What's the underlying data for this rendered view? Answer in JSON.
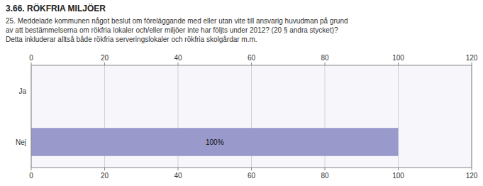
{
  "chart_data": {
    "type": "bar",
    "orientation": "horizontal",
    "title": "3.66. RÖKFRIA MILJÖER",
    "subtitle": "25. Meddelade kommunen något beslut om föreläggande med eller utan vite till ansvarig huvudman på grund\nav att bestämmelserna om rökfria lokaler och/eller miljöer inte har följts under 2012? (20 § andra stycket)?\nDetta inkluderar alltså både rökfria serveringslokaler och rökfria skolgårdar m.m.",
    "categories": [
      "Nej",
      "Ja"
    ],
    "values": [
      100,
      0
    ],
    "value_labels": [
      "100%",
      null
    ],
    "data_labels": true,
    "color": "#9999cc",
    "xlim": [
      0,
      120
    ],
    "xticks": [
      0,
      20,
      40,
      60,
      80,
      100,
      120
    ],
    "grid": true
  }
}
